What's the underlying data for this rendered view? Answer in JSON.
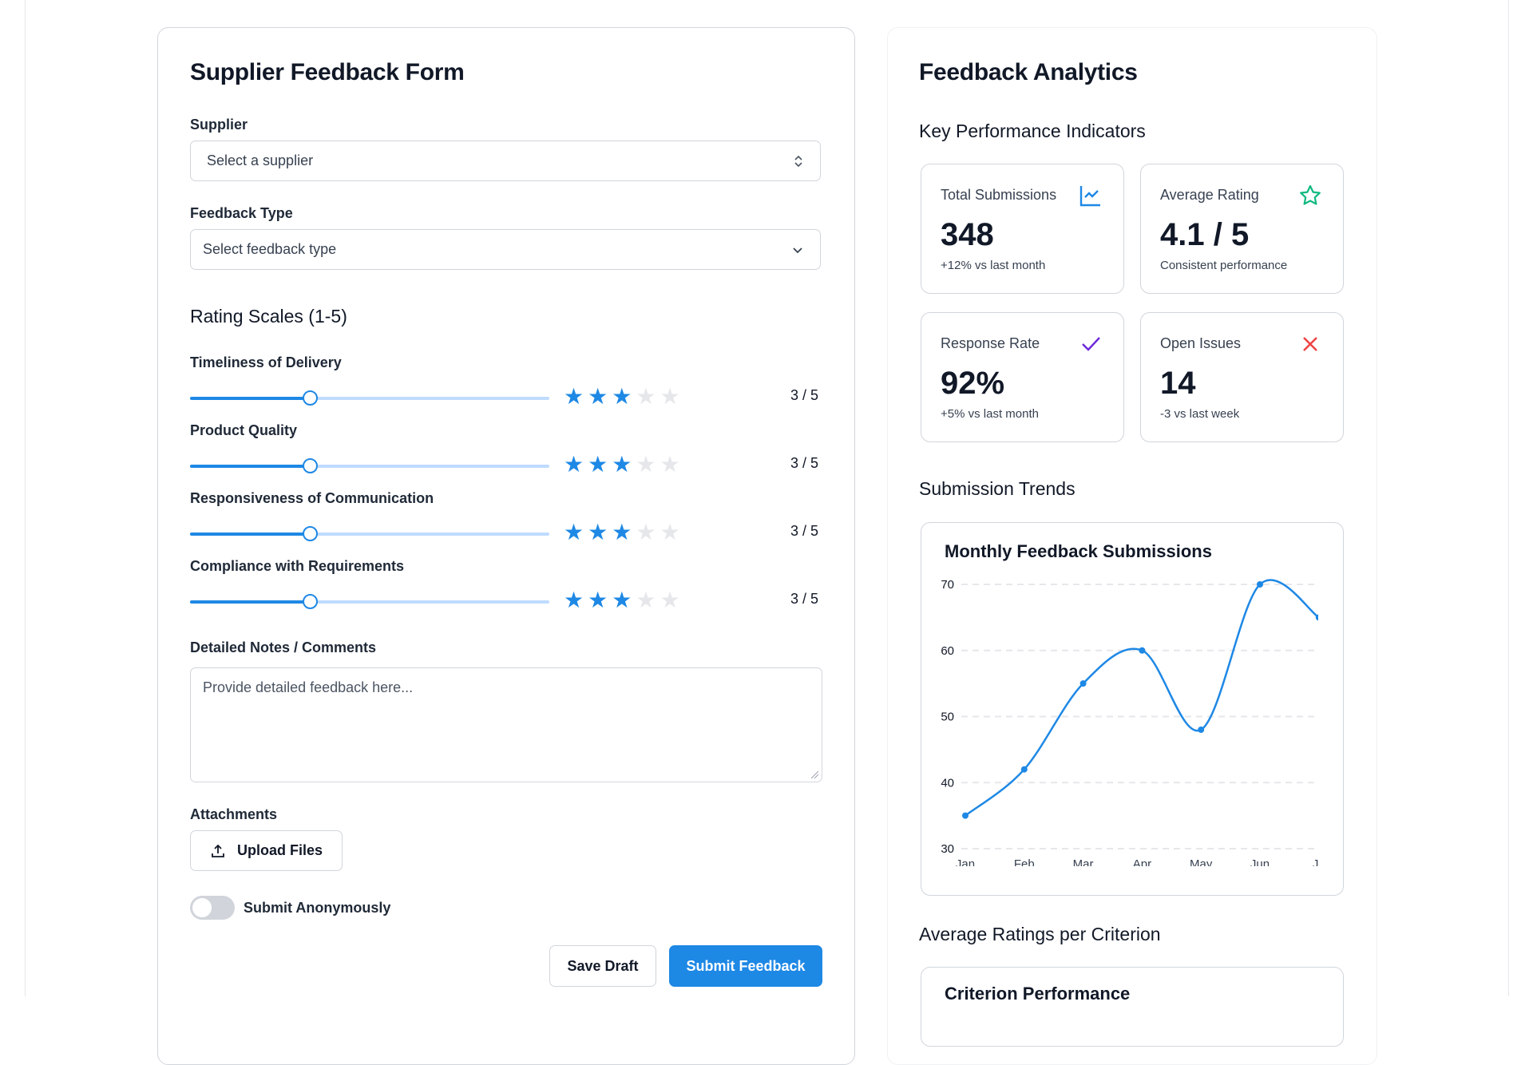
{
  "form": {
    "title": "Supplier Feedback Form",
    "supplier_label": "Supplier",
    "supplier_placeholder": "Select a supplier",
    "type_label": "Feedback Type",
    "type_placeholder": "Select feedback type",
    "ratings_heading": "Rating Scales (1-5)",
    "ratings": [
      {
        "label": "Timeliness of Delivery",
        "value": 3,
        "max": 5,
        "display": "3 / 5"
      },
      {
        "label": "Product Quality",
        "value": 3,
        "max": 5,
        "display": "3 / 5"
      },
      {
        "label": "Responsiveness of Communication",
        "value": 3,
        "max": 5,
        "display": "3 / 5"
      },
      {
        "label": "Compliance with Requirements",
        "value": 3,
        "max": 5,
        "display": "3 / 5"
      }
    ],
    "notes_label": "Detailed Notes / Comments",
    "notes_placeholder": "Provide detailed feedback here...",
    "attachments_label": "Attachments",
    "upload_label": "Upload Files",
    "anonymous_label": "Submit Anonymously",
    "anonymous_on": false,
    "save_label": "Save Draft",
    "submit_label": "Submit Feedback"
  },
  "analytics": {
    "title": "Feedback Analytics",
    "kpi_heading": "Key Performance Indicators",
    "kpis": [
      {
        "title": "Total Submissions",
        "value": "348",
        "sub": "+12% vs last month",
        "icon": "chart-line-icon",
        "color": "#1e88e5"
      },
      {
        "title": "Average Rating",
        "value": "4.1 / 5",
        "sub": "Consistent performance",
        "icon": "star-icon",
        "color": "#10b981"
      },
      {
        "title": "Response Rate",
        "value": "92%",
        "sub": "+5% vs last month",
        "icon": "check-icon",
        "color": "#6d28d9"
      },
      {
        "title": "Open Issues",
        "value": "14",
        "sub": "-3 vs last week",
        "icon": "x-icon",
        "color": "#ef4444"
      }
    ],
    "trends_heading": "Submission Trends",
    "avg_heading": "Average Ratings per Criterion",
    "criterion_card_title": "Criterion Performance"
  },
  "chart_data": {
    "type": "line",
    "title": "Monthly Feedback Submissions",
    "categories": [
      "Jan",
      "Feb",
      "Mar",
      "Apr",
      "May",
      "Jun",
      "Jul"
    ],
    "x_tick_labels": [
      "Jan",
      "Feb",
      "Mar",
      "Apr",
      "May",
      "Jun",
      "Ju"
    ],
    "values": [
      35,
      42,
      55,
      60,
      48,
      70,
      65
    ],
    "ylim": [
      30,
      70
    ],
    "yticks": [
      "30",
      "40",
      "50",
      "60",
      "70"
    ],
    "grid": true,
    "color": "#1e88e5"
  }
}
